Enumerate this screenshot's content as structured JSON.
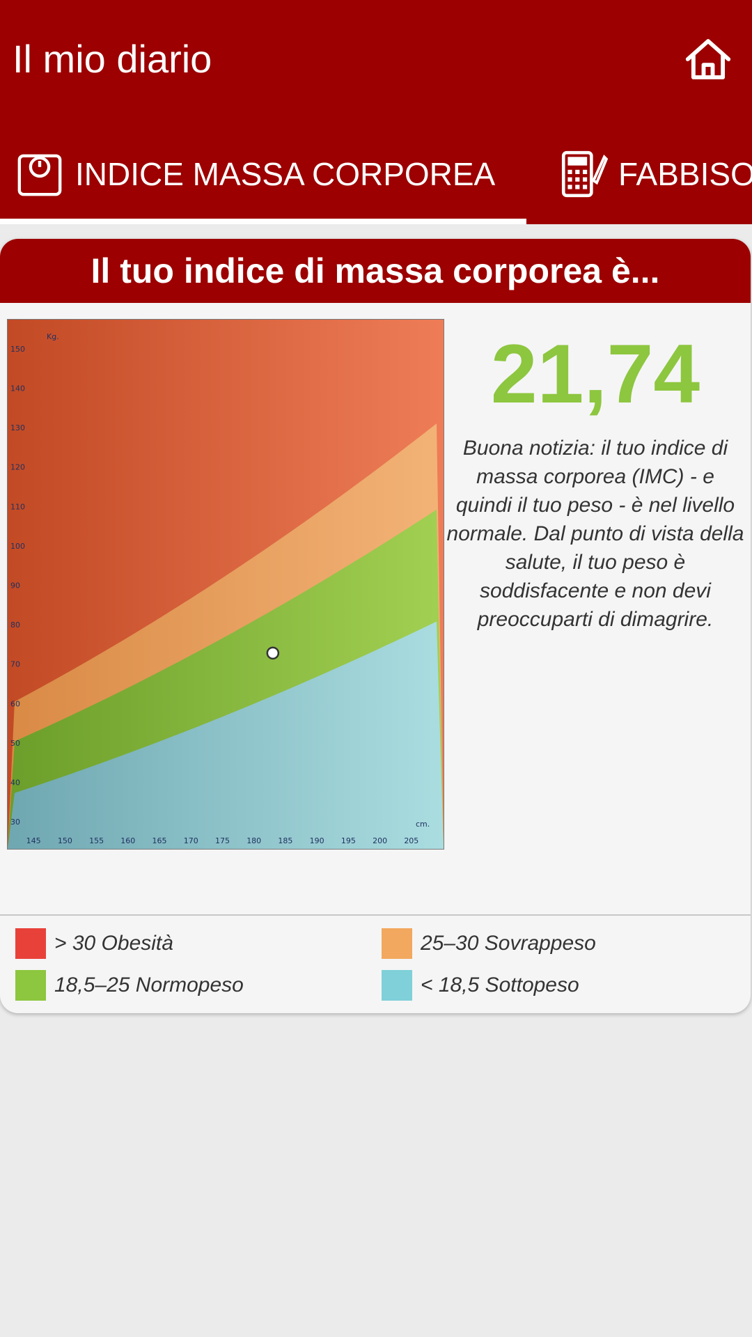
{
  "appbar": {
    "title": "Il mio diario",
    "home_icon": "home-icon"
  },
  "tabs": [
    {
      "label": "INDICE MASSA CORPOREA",
      "icon": "scale-icon",
      "selected": true
    },
    {
      "label": "FABBISO",
      "icon": "calculator-icon",
      "selected": false
    }
  ],
  "card": {
    "header": "Il tuo indice di massa corporea è...",
    "bmi_value": "21,74",
    "message": "Buona notizia: il tuo indice di massa corporea (IMC) - e quindi il tuo peso - è nel livello normale. Dal punto di vista della salute, il tuo peso è soddisfacente e non devi preoccuparti di dimagrire."
  },
  "legend": [
    {
      "label": "> 30 Obesità",
      "color": "#e8413a"
    },
    {
      "label": "25–30 Sovrappeso",
      "color": "#f2a85e"
    },
    {
      "label": "18,5–25 Normopeso",
      "color": "#8dc63f"
    },
    {
      "label": "< 18,5 Sottopeso",
      "color": "#7fd0d8"
    }
  ],
  "chart_data": {
    "type": "area",
    "xlabel": "cm.",
    "ylabel": "Kg.",
    "x_ticks": [
      145,
      150,
      155,
      160,
      165,
      170,
      175,
      180,
      185,
      190,
      195,
      200,
      205
    ],
    "y_ticks": [
      30,
      40,
      50,
      60,
      70,
      80,
      90,
      100,
      110,
      120,
      130,
      140,
      150
    ],
    "xlim": [
      142,
      209
    ],
    "ylim": [
      27,
      156
    ],
    "bands": [
      {
        "label": "< 18,5 Sottopeso",
        "bmi_max": 18.5,
        "color": "#8fd3da"
      },
      {
        "label": "18,5–25 Normopeso",
        "bmi_max": 25,
        "color": "#86c043"
      },
      {
        "label": "25–30 Sovrappeso",
        "bmi_max": 30,
        "color": "#f0a866"
      },
      {
        "label": "> 30 Obesità",
        "bmi_max": null,
        "color": "#e0623c"
      }
    ],
    "point": {
      "x": 183,
      "y": 72.8
    }
  }
}
